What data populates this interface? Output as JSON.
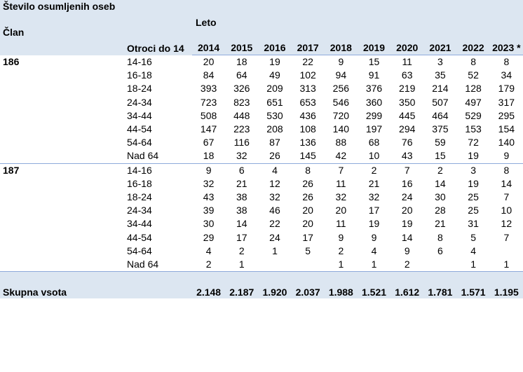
{
  "header": {
    "corner_title": "Število osumljenih oseb",
    "member_label": "Član",
    "age_label": "Otroci do 14",
    "year_group_label": "Leto",
    "years": [
      "2014",
      "2015",
      "2016",
      "2017",
      "2018",
      "2019",
      "2020",
      "2021",
      "2022",
      "2023 *"
    ]
  },
  "groups": [
    {
      "member": "186",
      "rows": [
        {
          "age": "14-16",
          "values": [
            "20",
            "18",
            "19",
            "22",
            "9",
            "15",
            "11",
            "3",
            "8",
            "8"
          ]
        },
        {
          "age": "16-18",
          "values": [
            "84",
            "64",
            "49",
            "102",
            "94",
            "91",
            "63",
            "35",
            "52",
            "34"
          ]
        },
        {
          "age": "18-24",
          "values": [
            "393",
            "326",
            "209",
            "313",
            "256",
            "376",
            "219",
            "214",
            "128",
            "179"
          ]
        },
        {
          "age": "24-34",
          "values": [
            "723",
            "823",
            "651",
            "653",
            "546",
            "360",
            "350",
            "507",
            "497",
            "317"
          ]
        },
        {
          "age": "34-44",
          "values": [
            "508",
            "448",
            "530",
            "436",
            "720",
            "299",
            "445",
            "464",
            "529",
            "295"
          ]
        },
        {
          "age": "44-54",
          "values": [
            "147",
            "223",
            "208",
            "108",
            "140",
            "197",
            "294",
            "375",
            "153",
            "154"
          ]
        },
        {
          "age": "54-64",
          "values": [
            "67",
            "116",
            "87",
            "136",
            "88",
            "68",
            "76",
            "59",
            "72",
            "140"
          ]
        },
        {
          "age": "Nad 64",
          "values": [
            "18",
            "32",
            "26",
            "145",
            "42",
            "10",
            "43",
            "15",
            "19",
            "9"
          ]
        }
      ]
    },
    {
      "member": "187",
      "rows": [
        {
          "age": "14-16",
          "values": [
            "9",
            "6",
            "4",
            "8",
            "7",
            "2",
            "7",
            "2",
            "3",
            "8"
          ]
        },
        {
          "age": "16-18",
          "values": [
            "32",
            "21",
            "12",
            "26",
            "11",
            "21",
            "16",
            "14",
            "19",
            "14"
          ]
        },
        {
          "age": "18-24",
          "values": [
            "43",
            "38",
            "32",
            "26",
            "32",
            "32",
            "24",
            "30",
            "25",
            "7"
          ]
        },
        {
          "age": "24-34",
          "values": [
            "39",
            "38",
            "46",
            "20",
            "20",
            "17",
            "20",
            "28",
            "25",
            "10"
          ]
        },
        {
          "age": "34-44",
          "values": [
            "30",
            "14",
            "22",
            "20",
            "11",
            "19",
            "19",
            "21",
            "31",
            "12"
          ]
        },
        {
          "age": "44-54",
          "values": [
            "29",
            "17",
            "24",
            "17",
            "9",
            "9",
            "14",
            "8",
            "5",
            "7"
          ]
        },
        {
          "age": "54-64",
          "values": [
            "4",
            "2",
            "1",
            "5",
            "2",
            "4",
            "9",
            "6",
            "4",
            ""
          ]
        },
        {
          "age": "Nad 64",
          "values": [
            "2",
            "1",
            "",
            "",
            "1",
            "1",
            "2",
            "",
            "1",
            "1"
          ]
        }
      ]
    }
  ],
  "footer": {
    "total_label": "Skupna vsota",
    "totals": [
      "2.148",
      "2.187",
      "1.920",
      "2.037",
      "1.988",
      "1.521",
      "1.612",
      "1.781",
      "1.571",
      "1.195"
    ]
  }
}
